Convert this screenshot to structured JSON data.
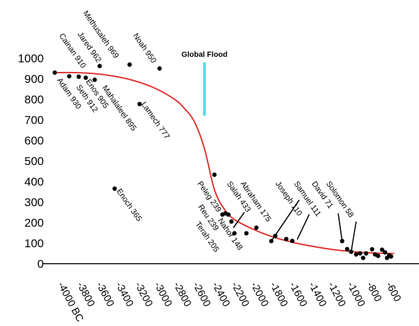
{
  "chart_data": {
    "type": "scatter",
    "title": "",
    "xlabel": "",
    "ylabel": "",
    "xlim": [
      -4100,
      -550
    ],
    "ylim": [
      0,
      1100
    ],
    "yticks": [
      0,
      100,
      200,
      300,
      400,
      500,
      600,
      700,
      800,
      900,
      1000
    ],
    "xtick_labels": [
      "-4000 BC",
      "-3800",
      "-3600",
      "-3400",
      "-3200",
      "-3000",
      "-2800",
      "-2600",
      "-2400",
      "-2200",
      "-2000",
      "-1800",
      "-1600",
      "-1400",
      "-1200",
      "-1000",
      "-800",
      "-600"
    ],
    "grid": false,
    "annotation": {
      "text": "Global Flood",
      "x": -2500,
      "y_from": 720,
      "y_to": 980,
      "color": "#57d8e8"
    },
    "curve_color": "#e0322f",
    "curve": [
      {
        "x": -4000,
        "y": 930
      },
      {
        "x": -3800,
        "y": 930
      },
      {
        "x": -3600,
        "y": 925
      },
      {
        "x": -3400,
        "y": 912
      },
      {
        "x": -3200,
        "y": 890
      },
      {
        "x": -3000,
        "y": 855
      },
      {
        "x": -2800,
        "y": 800
      },
      {
        "x": -2700,
        "y": 755
      },
      {
        "x": -2600,
        "y": 690
      },
      {
        "x": -2500,
        "y": 560
      },
      {
        "x": -2400,
        "y": 360
      },
      {
        "x": -2300,
        "y": 265
      },
      {
        "x": -2200,
        "y": 215
      },
      {
        "x": -2000,
        "y": 165
      },
      {
        "x": -1800,
        "y": 128
      },
      {
        "x": -1600,
        "y": 102
      },
      {
        "x": -1400,
        "y": 83
      },
      {
        "x": -1200,
        "y": 68
      },
      {
        "x": -1000,
        "y": 58
      },
      {
        "x": -800,
        "y": 52
      },
      {
        "x": -600,
        "y": 49
      }
    ],
    "labels": [
      {
        "text": "Methusaleh 969",
        "x": -3300
      },
      {
        "text": "Noah 950",
        "x": -2970
      },
      {
        "text": "Jared 962",
        "x": -3460
      },
      {
        "text": "Cainan 910",
        "x": -3760
      },
      {
        "text": "Adam 930",
        "x": -3940
      },
      {
        "text": "Seth 912",
        "x": -3790
      },
      {
        "text": "Enos 905",
        "x": -3660
      },
      {
        "text": "Mahalaleel 895",
        "x": -3540
      },
      {
        "text": "Lamech 777",
        "x": -3200
      },
      {
        "text": "Enoch 365",
        "x": -3340
      },
      {
        "text": "Peleg 239",
        "x": -2260
      },
      {
        "text": "Salah 433",
        "x": -2180
      },
      {
        "text": "Abraham 175",
        "x": -1990
      },
      {
        "text": "Reu 239",
        "x": -2260
      },
      {
        "text": "Terah 205",
        "x": -2230
      },
      {
        "text": "Nahor 148",
        "x": -2130
      },
      {
        "text": "Joseph 110",
        "x": -1730
      },
      {
        "text": "Samuel 111",
        "x": -1540
      },
      {
        "text": "David 71",
        "x": -1300
      },
      {
        "text": "Solomon 58",
        "x": -1160
      }
    ],
    "points": [
      {
        "x": -4000,
        "y": 930
      },
      {
        "x": -3855,
        "y": 912
      },
      {
        "x": -3760,
        "y": 910
      },
      {
        "x": -3690,
        "y": 905
      },
      {
        "x": -3600,
        "y": 895
      },
      {
        "x": -3550,
        "y": 962
      },
      {
        "x": -3250,
        "y": 969
      },
      {
        "x": -3400,
        "y": 365
      },
      {
        "x": -3150,
        "y": 777
      },
      {
        "x": -2950,
        "y": 950
      },
      {
        "x": -2400,
        "y": 433
      },
      {
        "x": -2320,
        "y": 239
      },
      {
        "x": -2290,
        "y": 245
      },
      {
        "x": -2260,
        "y": 239
      },
      {
        "x": -2230,
        "y": 205
      },
      {
        "x": -2200,
        "y": 148
      },
      {
        "x": -2080,
        "y": 148
      },
      {
        "x": -1980,
        "y": 175
      },
      {
        "x": -1830,
        "y": 110
      },
      {
        "x": -1790,
        "y": 135
      },
      {
        "x": -1680,
        "y": 120
      },
      {
        "x": -1620,
        "y": 111
      },
      {
        "x": -1120,
        "y": 110
      },
      {
        "x": -1070,
        "y": 71
      },
      {
        "x": -1030,
        "y": 58
      },
      {
        "x": -980,
        "y": 45
      },
      {
        "x": -940,
        "y": 50
      },
      {
        "x": -910,
        "y": 28
      },
      {
        "x": -880,
        "y": 50
      },
      {
        "x": -820,
        "y": 70
      },
      {
        "x": -790,
        "y": 45
      },
      {
        "x": -760,
        "y": 38
      },
      {
        "x": -720,
        "y": 68
      },
      {
        "x": -690,
        "y": 55
      },
      {
        "x": -670,
        "y": 28
      },
      {
        "x": -650,
        "y": 40
      },
      {
        "x": -630,
        "y": 35
      }
    ],
    "leaders": [
      {
        "from": {
          "x": -2210,
          "y": 175
        },
        "to": {
          "x": -2100,
          "y": 250
        }
      },
      {
        "from": {
          "x": -1830,
          "y": 110
        },
        "to": {
          "x": -1550,
          "y": 310
        }
      },
      {
        "from": {
          "x": -1570,
          "y": 118
        },
        "to": {
          "x": -1450,
          "y": 240
        }
      },
      {
        "from": {
          "x": -1120,
          "y": 110
        },
        "to": {
          "x": -1160,
          "y": 245
        }
      },
      {
        "from": {
          "x": -1030,
          "y": 58
        },
        "to": {
          "x": -980,
          "y": 205
        }
      }
    ]
  }
}
